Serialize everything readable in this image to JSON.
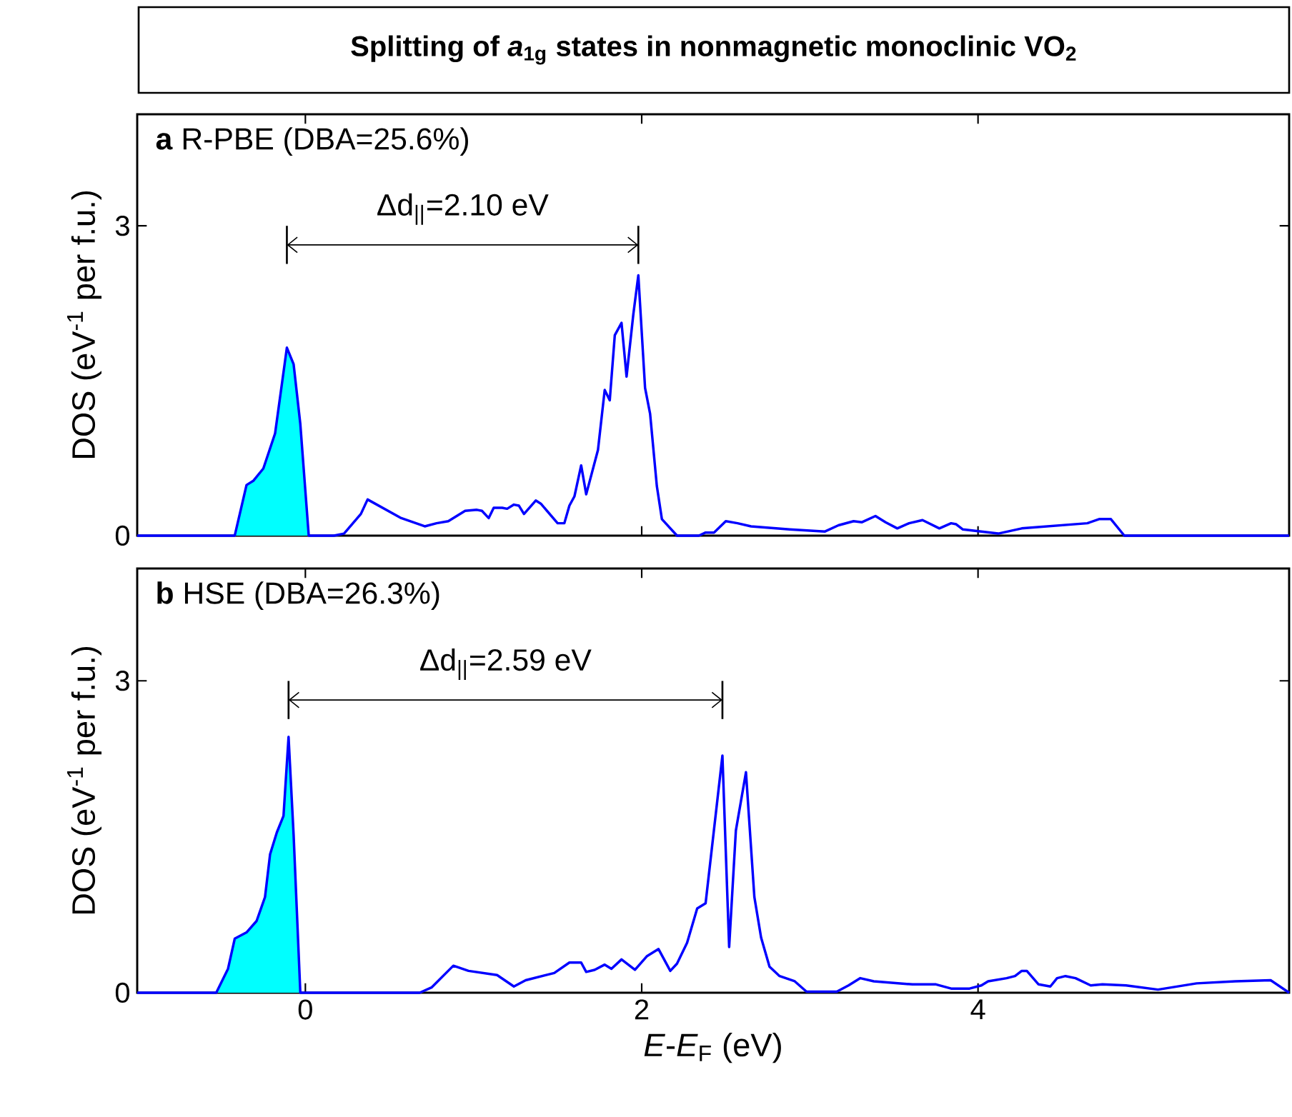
{
  "chart_data": [
    {
      "type": "line",
      "title": "Splitting of *a*$_{1g}$ states in nonmagnetic monoclinic VO$_{2}$",
      "subtitle": "**a**  R-PBE (DBA=25.6%)",
      "ylabel": "DOS (eV$^{-1}$ per f.u.)",
      "xlim": [
        -1,
        5.85
      ],
      "ylim": [
        0,
        4.08
      ],
      "xticks": [
        0,
        2,
        4
      ],
      "yticks": [
        0,
        3
      ],
      "tick_labels": "y",
      "annotations": [
        "Δd$_{||}$=2.10 eV"
      ],
      "series": [
        {
          "type": "area",
          "color": "#00ffff",
          "x": [
            -1,
            -0.42,
            -0.35,
            -0.31,
            -0.25,
            -0.18,
            -0.11,
            -0.07,
            -0.03,
            0.02
          ],
          "values": [
            0,
            0,
            0.49,
            0.53,
            0.65,
            0.99,
            1.82,
            1.66,
            1.08,
            0
          ]
        },
        {
          "color": "#0000ff",
          "x": [
            -1,
            -0.42,
            -0.35,
            -0.31,
            -0.25,
            -0.18,
            -0.11,
            -0.07,
            -0.03,
            0.02,
            0.17,
            0.23,
            0.33,
            0.37,
            0.57,
            0.71,
            0.78,
            0.85,
            0.95,
            1.02,
            1.05,
            1.09,
            1.12,
            1.17,
            1.2,
            1.24,
            1.27,
            1.3,
            1.37,
            1.4,
            1.5,
            1.54,
            1.57,
            1.6,
            1.64,
            1.67,
            1.74,
            1.78,
            1.81,
            1.84,
            1.88,
            1.91,
            1.95,
            1.98,
            2.02,
            2.05,
            2.09,
            2.12,
            2.21,
            2.34,
            2.38,
            2.43,
            2.5,
            2.57,
            2.65,
            2.88,
            3.09,
            3.17,
            3.26,
            3.31,
            3.39,
            3.45,
            3.52,
            3.59,
            3.67,
            3.77,
            3.84,
            3.87,
            3.91,
            4.12,
            4.26,
            4.65,
            4.72,
            4.79,
            4.87,
            5.85
          ],
          "values": [
            0,
            0,
            0.49,
            0.53,
            0.65,
            0.99,
            1.82,
            1.66,
            1.08,
            0,
            0,
            0.02,
            0.21,
            0.35,
            0.17,
            0.09,
            0.12,
            0.14,
            0.24,
            0.25,
            0.24,
            0.17,
            0.27,
            0.27,
            0.26,
            0.3,
            0.29,
            0.21,
            0.34,
            0.31,
            0.12,
            0.12,
            0.29,
            0.38,
            0.68,
            0.4,
            0.83,
            1.41,
            1.31,
            1.94,
            2.06,
            1.54,
            2.14,
            2.52,
            1.43,
            1.18,
            0.48,
            0.16,
            0,
            0,
            0.03,
            0.03,
            0.14,
            0.12,
            0.09,
            0.06,
            0.04,
            0.1,
            0.14,
            0.13,
            0.19,
            0.13,
            0.07,
            0.12,
            0.15,
            0.07,
            0.12,
            0.11,
            0.06,
            0.02,
            0.07,
            0.12,
            0.16,
            0.16,
            0,
            0
          ]
        }
      ]
    },
    {
      "type": "line",
      "subtitle": "**b**  HSE (DBA=26.3%)",
      "xlabel": "*E*-*E*$_{F}$ (eV)",
      "ylabel": "DOS (eV$^{-1}$ per f.u.)",
      "xlim": [
        -1,
        5.85
      ],
      "ylim": [
        0,
        4.08
      ],
      "xticks": [
        0,
        2,
        4
      ],
      "yticks": [
        0,
        3
      ],
      "annotations": [
        "Δd$_{||}$=2.59 eV"
      ],
      "series": [
        {
          "type": "area",
          "color": "#00ffff",
          "x": [
            -1,
            -0.53,
            -0.46,
            -0.42,
            -0.35,
            -0.29,
            -0.24,
            -0.21,
            -0.17,
            -0.13,
            -0.1,
            -0.07,
            -0.03
          ],
          "values": [
            0,
            0,
            0.23,
            0.52,
            0.58,
            0.69,
            0.92,
            1.33,
            1.54,
            1.7,
            2.46,
            1.52,
            0
          ]
        },
        {
          "color": "#0000ff",
          "x": [
            -1,
            -0.53,
            -0.46,
            -0.42,
            -0.35,
            -0.29,
            -0.24,
            -0.21,
            -0.17,
            -0.13,
            -0.1,
            -0.07,
            -0.03,
            0.68,
            0.75,
            0.88,
            0.97,
            1.14,
            1.24,
            1.31,
            1.48,
            1.57,
            1.64,
            1.67,
            1.72,
            1.78,
            1.82,
            1.88,
            1.96,
            2.03,
            2.1,
            2.17,
            2.21,
            2.27,
            2.33,
            2.38,
            2.48,
            2.52,
            2.56,
            2.62,
            2.67,
            2.71,
            2.76,
            2.82,
            2.91,
            2.98,
            3.16,
            3.23,
            3.3,
            3.38,
            3.61,
            3.75,
            3.84,
            3.95,
            4.02,
            4.06,
            4.17,
            4.22,
            4.26,
            4.29,
            4.36,
            4.43,
            4.47,
            4.52,
            4.58,
            4.67,
            4.74,
            4.88,
            5.07,
            5.3,
            5.53,
            5.74,
            5.85
          ],
          "values": [
            0,
            0,
            0.23,
            0.52,
            0.58,
            0.69,
            0.92,
            1.33,
            1.54,
            1.7,
            2.46,
            1.52,
            0,
            0,
            0.05,
            0.26,
            0.21,
            0.17,
            0.06,
            0.12,
            0.19,
            0.29,
            0.29,
            0.2,
            0.22,
            0.27,
            0.23,
            0.32,
            0.22,
            0.35,
            0.42,
            0.21,
            0.28,
            0.48,
            0.81,
            0.86,
            2.28,
            0.44,
            1.56,
            2.12,
            0.92,
            0.53,
            0.25,
            0.16,
            0.11,
            0.01,
            0.01,
            0.07,
            0.14,
            0.11,
            0.08,
            0.08,
            0.04,
            0.04,
            0.07,
            0.11,
            0.14,
            0.16,
            0.21,
            0.21,
            0.08,
            0.06,
            0.14,
            0.16,
            0.14,
            0.07,
            0.08,
            0.07,
            0.03,
            0.09,
            0.11,
            0.12,
            0
          ]
        }
      ]
    }
  ]
}
